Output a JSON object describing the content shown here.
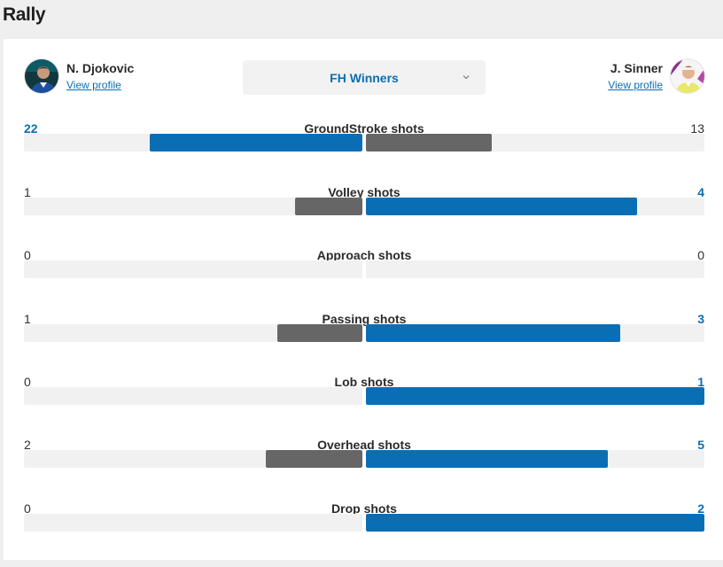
{
  "section_title": "Rally",
  "players": {
    "left": {
      "name": "N. Djokovic",
      "link": "View profile",
      "avatar": "player-photo-djokovic"
    },
    "right": {
      "name": "J. Sinner",
      "link": "View profile",
      "avatar": "player-photo-sinner"
    }
  },
  "filter": {
    "selected": "FH Winners",
    "icon": "chevron-down-icon"
  },
  "colors": {
    "leader": "#0a6eb4",
    "trailer": "#666666",
    "track": "#f1f1f1"
  },
  "stats": [
    {
      "label": "GroundStroke shots",
      "left": "22",
      "right": "13"
    },
    {
      "label": "Volley shots",
      "left": "1",
      "right": "4"
    },
    {
      "label": "Approach shots",
      "left": "0",
      "right": "0"
    },
    {
      "label": "Passing shots",
      "left": "1",
      "right": "3"
    },
    {
      "label": "Lob shots",
      "left": "0",
      "right": "1"
    },
    {
      "label": "Overhead shots",
      "left": "2",
      "right": "5"
    },
    {
      "label": "Drop shots",
      "left": "0",
      "right": "2"
    }
  ]
}
